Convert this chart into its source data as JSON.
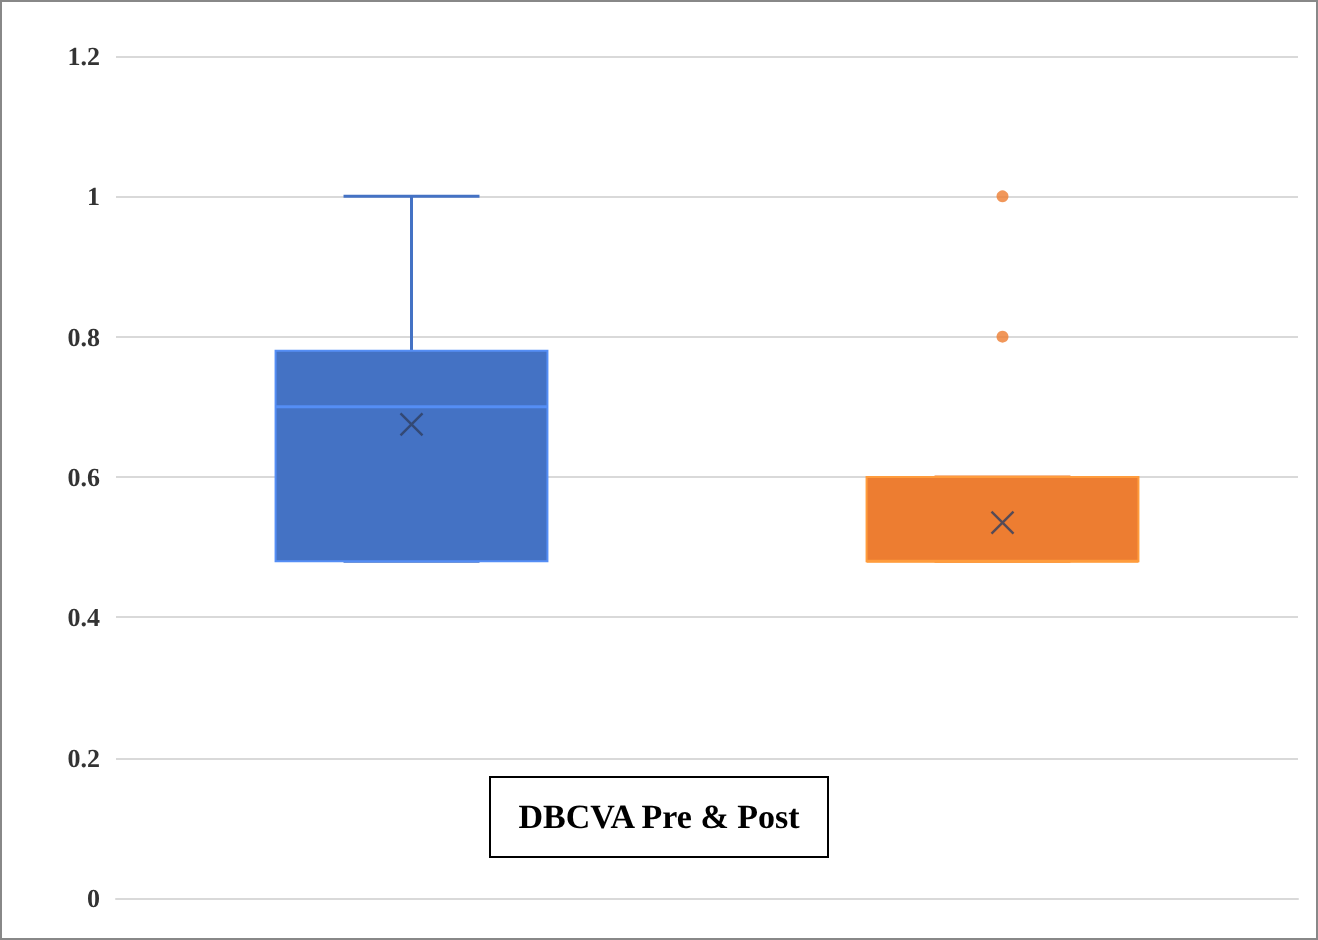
{
  "chart_data": {
    "type": "box",
    "title": "DBCVA Pre & Post",
    "categories": [
      null,
      null
    ],
    "colors": [
      "#4472c4",
      "#ed7d31"
    ],
    "boxes": [
      {
        "low": 0.48,
        "q1": 0.48,
        "median": 0.7,
        "q3": 0.78,
        "high": 1.0,
        "mean": 0.675
      },
      {
        "low": 0.48,
        "q1": 0.48,
        "median": 0.48,
        "q3": 0.6,
        "high": 0.6,
        "mean": 0.535,
        "outliers": [
          0.8,
          1.0
        ]
      }
    ],
    "ylim": [
      0,
      1.2
    ],
    "yticks": [
      0,
      0.2,
      0.4,
      0.6,
      0.8,
      1,
      1.2
    ],
    "grid": "y"
  }
}
